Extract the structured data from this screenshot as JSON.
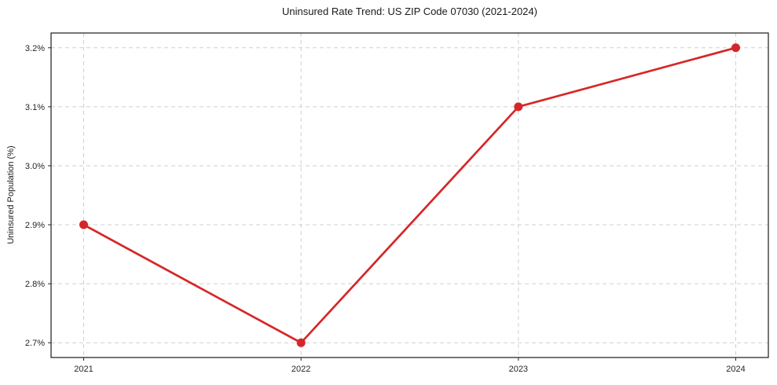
{
  "chart_data": {
    "type": "line",
    "title": "Uninsured Rate Trend: US ZIP Code 07030 (2021-2024)",
    "xlabel": "",
    "ylabel": "Uninsured Population (%)",
    "x": [
      2021,
      2022,
      2023,
      2024
    ],
    "values": [
      2.9,
      2.7,
      3.1,
      3.2
    ],
    "xtick_labels": [
      "2021",
      "2022",
      "2023",
      "2024"
    ],
    "yticks": [
      2.7,
      2.8,
      2.9,
      3.0,
      3.1,
      3.2
    ],
    "ytick_labels": [
      "2.7%",
      "2.8%",
      "2.9%",
      "3.0%",
      "3.1%",
      "3.2%"
    ],
    "xlim": [
      2020.85,
      2024.15
    ],
    "ylim": [
      2.675,
      3.225
    ],
    "grid": true,
    "grid_style": "dashed",
    "legend_position": "none",
    "line_color": "#d62728",
    "marker": "circle",
    "marker_radius": 5.5,
    "grid_color": "#cfcfcf",
    "background_color": "#ffffff"
  }
}
